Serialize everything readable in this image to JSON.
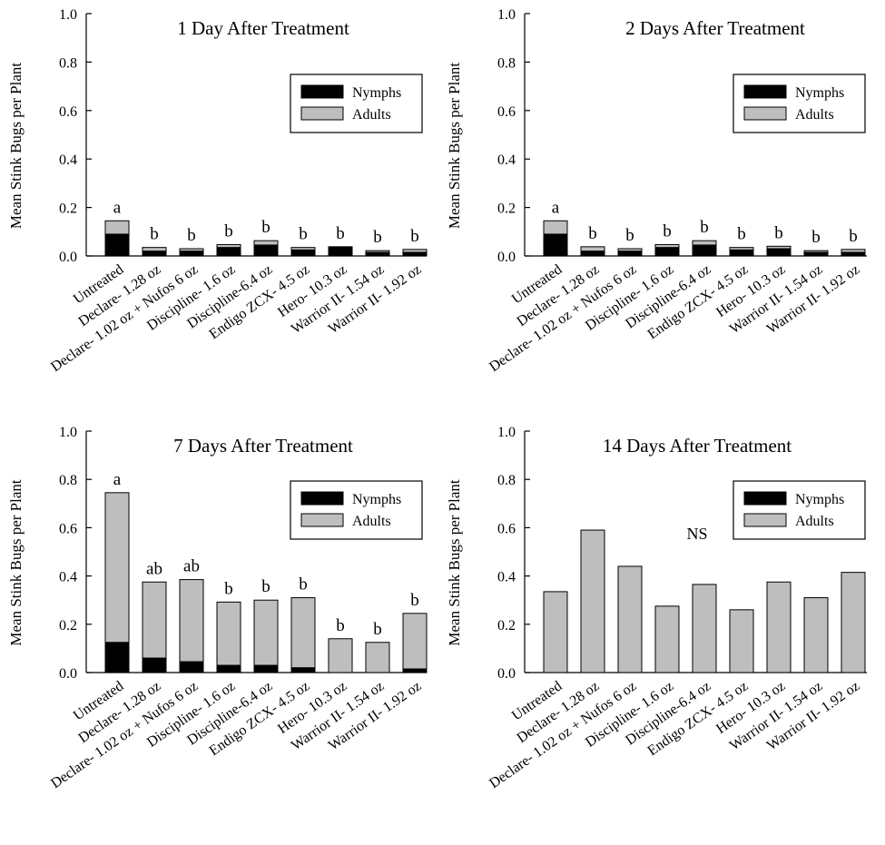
{
  "chart_data": [
    {
      "type": "bar",
      "stacked": true,
      "title": "1 Day After Treatment",
      "ylabel": "Mean Stink Bugs per Plant",
      "ylim": [
        0,
        1.0
      ],
      "yticks": [
        "0.0",
        "0.2",
        "0.4",
        "0.6",
        "0.8",
        "1.0"
      ],
      "categories": [
        "Untreated",
        "Declare- 1.28 oz",
        "Declare- 1.02 oz + Nufos 6 oz",
        "Discipline- 1.6 oz",
        "Discipline-6.4 oz",
        "Endigo ZCX- 4.5 oz",
        "Hero- 10.3 oz",
        "Warrior II- 1.54 oz",
        "Warrior II- 1.92 oz"
      ],
      "series": [
        {
          "name": "Nymphs",
          "color": "#000000",
          "values": [
            0.09,
            0.02,
            0.02,
            0.035,
            0.045,
            0.025,
            0.035,
            0.015,
            0.015
          ]
        },
        {
          "name": "Adults",
          "color": "#bebebe",
          "values": [
            0.055,
            0.015,
            0.01,
            0.012,
            0.018,
            0.01,
            0.003,
            0.007,
            0.012
          ]
        }
      ],
      "letters": [
        "a",
        "b",
        "b",
        "b",
        "b",
        "b",
        "b",
        "b",
        "b"
      ],
      "annotation": "",
      "legend": "top-right"
    },
    {
      "type": "bar",
      "stacked": true,
      "title": "2 Days After Treatment",
      "ylabel": "Mean Stink Bugs per Plant",
      "ylim": [
        0,
        1.0
      ],
      "yticks": [
        "0.0",
        "0.2",
        "0.4",
        "0.6",
        "0.8",
        "1.0"
      ],
      "categories": [
        "Untreated",
        "Declare- 1.28 oz",
        "Declare- 1.02 oz + Nufos 6 oz",
        "Discipline- 1.6 oz",
        "Discipline-6.4 oz",
        "Endigo ZCX- 4.5 oz",
        "Hero- 10.3 oz",
        "Warrior II- 1.54 oz",
        "Warrior II- 1.92 oz"
      ],
      "series": [
        {
          "name": "Nymphs",
          "color": "#000000",
          "values": [
            0.09,
            0.02,
            0.02,
            0.035,
            0.045,
            0.025,
            0.03,
            0.015,
            0.015
          ]
        },
        {
          "name": "Adults",
          "color": "#bebebe",
          "values": [
            0.055,
            0.018,
            0.01,
            0.012,
            0.018,
            0.01,
            0.01,
            0.007,
            0.012
          ]
        }
      ],
      "letters": [
        "a",
        "b",
        "b",
        "b",
        "b",
        "b",
        "b",
        "b",
        "b"
      ],
      "annotation": "",
      "legend": "top-right"
    },
    {
      "type": "bar",
      "stacked": true,
      "title": "7 Days After Treatment",
      "ylabel": "Mean Stink Bugs per Plant",
      "ylim": [
        0,
        1.0
      ],
      "yticks": [
        "0.0",
        "0.2",
        "0.4",
        "0.6",
        "0.8",
        "1.0"
      ],
      "categories": [
        "Untreated",
        "Declare- 1.28 oz",
        "Declare- 1.02 oz + Nufos 6 oz",
        "Discipline- 1.6 oz",
        "Discipline-6.4 oz",
        "Endigo ZCX- 4.5 oz",
        "Hero- 10.3 oz",
        "Warrior II- 1.54 oz",
        "Warrior II- 1.92 oz"
      ],
      "series": [
        {
          "name": "Nymphs",
          "color": "#000000",
          "values": [
            0.125,
            0.06,
            0.045,
            0.03,
            0.03,
            0.02,
            0,
            0,
            0.015
          ]
        },
        {
          "name": "Adults",
          "color": "#bebebe",
          "values": [
            0.62,
            0.315,
            0.34,
            0.262,
            0.27,
            0.29,
            0.14,
            0.125,
            0.23
          ]
        }
      ],
      "letters": [
        "a",
        "ab",
        "ab",
        "b",
        "b",
        "b",
        "b",
        "b",
        "b"
      ],
      "annotation": "",
      "legend": "top-right"
    },
    {
      "type": "bar",
      "stacked": true,
      "title": "14 Days After Treatment",
      "ylabel": "Mean Stink Bugs per Plant",
      "ylim": [
        0,
        1.0
      ],
      "yticks": [
        "0.0",
        "0.2",
        "0.4",
        "0.6",
        "0.8",
        "1.0"
      ],
      "categories": [
        "Untreated",
        "Declare- 1.28 oz",
        "Declare- 1.02 oz + Nufos 6 oz",
        "Discipline- 1.6 oz",
        "Discipline-6.4 oz",
        "Endigo ZCX- 4.5 oz",
        "Hero- 10.3 oz",
        "Warrior II- 1.54 oz",
        "Warrior II- 1.92 oz"
      ],
      "series": [
        {
          "name": "Nymphs",
          "color": "#000000",
          "values": [
            0,
            0,
            0,
            0,
            0,
            0,
            0,
            0,
            0
          ]
        },
        {
          "name": "Adults",
          "color": "#bebebe",
          "values": [
            0.335,
            0.59,
            0.44,
            0.275,
            0.365,
            0.26,
            0.375,
            0.31,
            0.415
          ]
        }
      ],
      "letters": [
        "",
        "",
        "",
        "",
        "",
        "",
        "",
        "",
        ""
      ],
      "annotation": "NS",
      "legend": "top-right"
    }
  ]
}
